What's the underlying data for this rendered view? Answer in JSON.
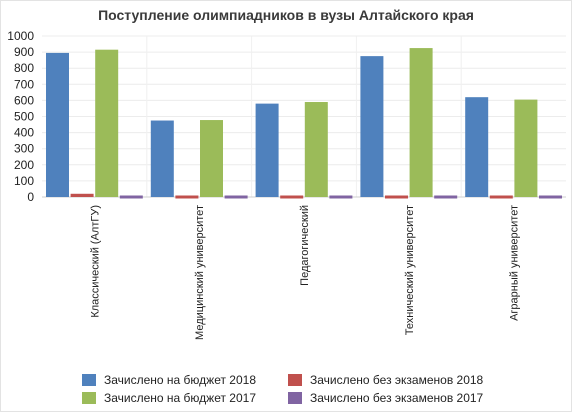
{
  "chart_data": {
    "type": "bar",
    "title": "Поступление олимпиадников в вузы Алтайского края",
    "categories": [
      "Классический (АлтГУ)",
      "Медицинский университет",
      "Педагогический",
      "Технический университет",
      "Аграрный университет"
    ],
    "series": [
      {
        "name": "Зачислено на бюджет 2018",
        "color": "#4f81bd",
        "values": [
          895,
          475,
          580,
          875,
          620
        ]
      },
      {
        "name": "Зачислено без экзаменов 2018",
        "color": "#c0504d",
        "values": [
          20,
          2,
          2,
          2,
          2
        ]
      },
      {
        "name": "Зачислено на бюджет 2017",
        "color": "#9bbb59",
        "values": [
          915,
          478,
          590,
          925,
          605
        ]
      },
      {
        "name": "Зачислено без экзаменов 2017",
        "color": "#8064a2",
        "values": [
          15,
          2,
          2,
          5,
          2
        ]
      }
    ],
    "ylim": [
      0,
      1000
    ],
    "yticks": [
      0,
      100,
      200,
      300,
      400,
      500,
      600,
      700,
      800,
      900,
      1000
    ],
    "grid": true,
    "legend_position": "bottom"
  }
}
